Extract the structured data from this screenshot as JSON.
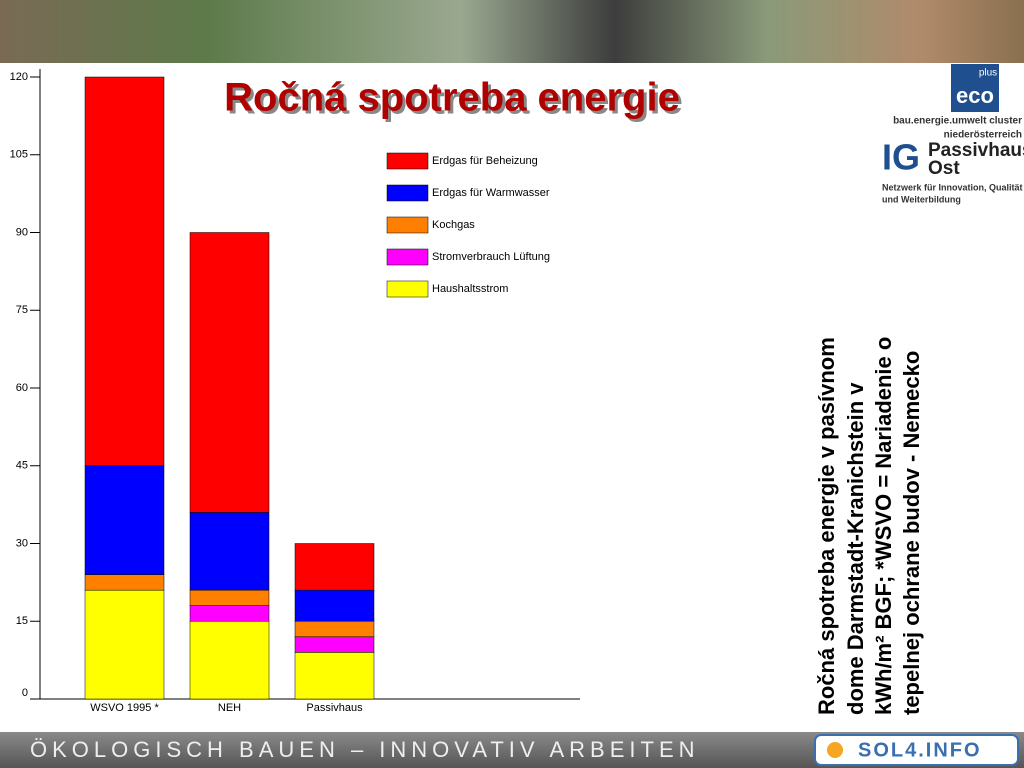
{
  "chart_data": {
    "type": "stacked-bar",
    "title": "Ročná spotreba energie",
    "categories": [
      "WSVO 1995 *",
      "NEH",
      "Passivhaus"
    ],
    "series": [
      {
        "name": "Erdgas für Beheizung",
        "color": "#ff0000",
        "values": [
          75,
          54,
          9
        ]
      },
      {
        "name": "Erdgas für Warmwasser",
        "color": "#0000ff",
        "values": [
          21,
          15,
          6
        ]
      },
      {
        "name": "Kochgas",
        "color": "#ff7f00",
        "values": [
          3,
          3,
          3
        ]
      },
      {
        "name": "Stromverbrauch Lüftung",
        "color": "#ff00ff",
        "values": [
          0,
          3,
          3
        ]
      },
      {
        "name": "Haushaltsstrom",
        "color": "#ffff00",
        "values": [
          21,
          15,
          9
        ]
      }
    ],
    "ylim": [
      0,
      120
    ],
    "yticks": [
      0,
      15,
      30,
      45,
      60,
      75,
      90,
      105,
      120
    ]
  },
  "caption": [
    "Ročná spotreba energie v pasívnom",
    "dome Darmstadt-Kranichstein v",
    "kWh/m² BGF; *WSVO = Nariadenie o",
    "tepelnej ochrane budov  - Nemecko"
  ],
  "logos": {
    "eco_top": "plus",
    "eco_main": "eco",
    "cluster": "bau.energie.umwelt cluster",
    "region": "niederösterreich",
    "ig": "IG",
    "ig_name_1": "Passivhaus",
    "ig_name_2": "Ost",
    "network_1": "Netzwerk für Innovation, Qualität",
    "network_2": "und Weiterbildung"
  },
  "footer": {
    "slogan": "ÖKOLOGISCH BAUEN – INNOVATIV ARBEITEN",
    "site": "SOL4.INFO"
  }
}
